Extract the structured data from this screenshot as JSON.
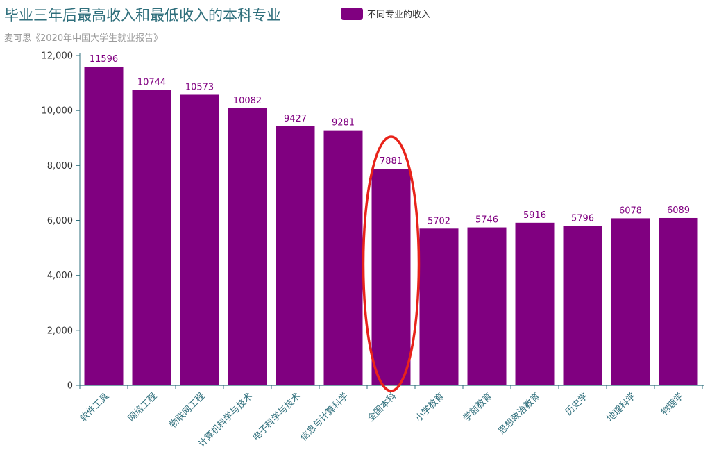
{
  "chart_data": {
    "type": "bar",
    "title": "毕业三年后最高收入和最低收入的本科专业",
    "subtitle": "麦可思《2020年中国大学生就业报告》",
    "categories": [
      "软件工具",
      "网络工程",
      "物联网工程",
      "计算机科学与技术",
      "电子科学与技术",
      "信息与计算科学",
      "全国本科",
      "小学教育",
      "学前教育",
      "思想政治教育",
      "历史学",
      "地理科学",
      "物理学"
    ],
    "series": [
      {
        "name": "不同专业的收入",
        "values": [
          11596,
          10744,
          10573,
          10082,
          9427,
          9281,
          7881,
          5702,
          5746,
          5916,
          5796,
          6078,
          6089
        ]
      }
    ],
    "ylim": [
      0,
      12000
    ],
    "yticks": [
      0,
      2000,
      4000,
      6000,
      8000,
      10000,
      12000
    ],
    "ytick_labels": [
      "0",
      "2,000",
      "4,000",
      "6,000",
      "8,000",
      "10,000",
      "12,000"
    ],
    "legend_position": "top",
    "grid": false,
    "highlight_category": "全国本科",
    "highlight_shape": "ellipse",
    "colors": {
      "bar": "#800080",
      "title": "#2f6f7c",
      "subtitle": "#9a9a9a",
      "axis": "#2f6f7c",
      "highlight": "#e8231a"
    }
  }
}
